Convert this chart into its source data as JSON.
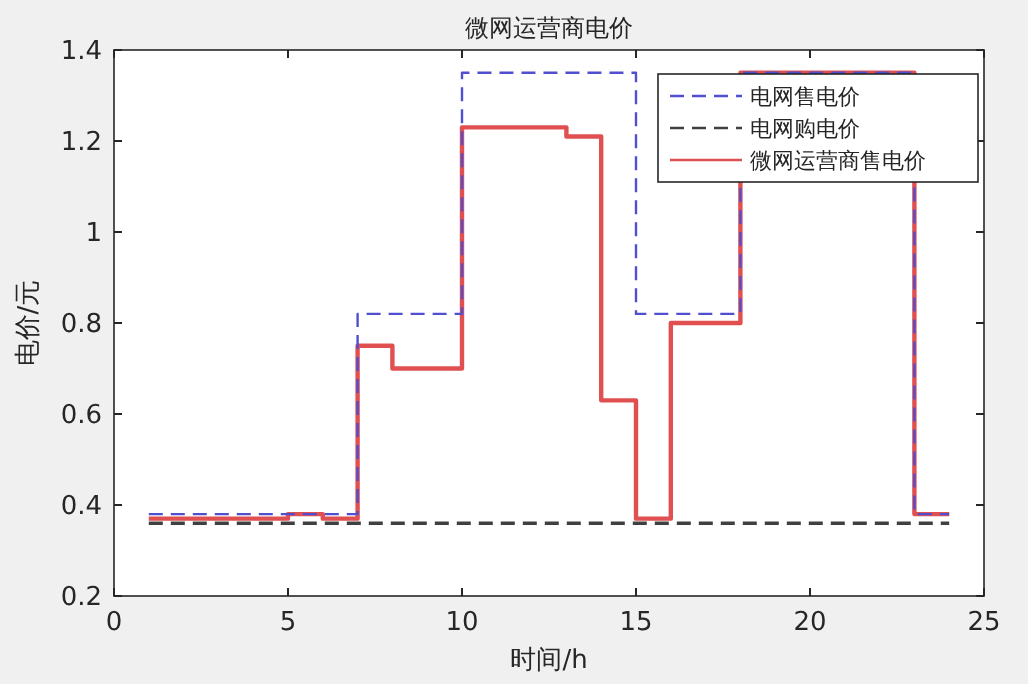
{
  "chart_data": {
    "type": "step",
    "title": "微网运营商电价",
    "xlabel": "时间/h",
    "ylabel": "电价/元",
    "x": [
      1,
      2,
      3,
      4,
      5,
      6,
      7,
      8,
      9,
      10,
      11,
      12,
      13,
      14,
      15,
      16,
      17,
      18,
      19,
      20,
      21,
      22,
      23,
      24
    ],
    "series": [
      {
        "name": "电网售电价",
        "color": "#4f4fcf",
        "line_style": "dashed",
        "values": [
          0.38,
          0.38,
          0.38,
          0.38,
          0.38,
          0.38,
          0.82,
          0.82,
          0.82,
          1.35,
          1.35,
          1.35,
          1.35,
          1.35,
          0.82,
          0.82,
          0.82,
          1.35,
          1.35,
          1.35,
          1.35,
          1.35,
          0.38,
          0.38
        ]
      },
      {
        "name": "电网购电价",
        "color": "#404040",
        "line_style": "dashed",
        "values": [
          0.36,
          0.36,
          0.36,
          0.36,
          0.36,
          0.36,
          0.36,
          0.36,
          0.36,
          0.36,
          0.36,
          0.36,
          0.36,
          0.36,
          0.36,
          0.36,
          0.36,
          0.36,
          0.36,
          0.36,
          0.36,
          0.36,
          0.36,
          0.36
        ]
      },
      {
        "name": "微网运营商售电价",
        "color": "#e05050",
        "line_style": "solid",
        "values": [
          0.37,
          0.37,
          0.37,
          0.37,
          0.38,
          0.37,
          0.75,
          0.7,
          0.7,
          1.23,
          1.23,
          1.23,
          1.21,
          0.63,
          0.37,
          0.8,
          0.8,
          1.35,
          1.35,
          1.35,
          1.35,
          1.35,
          0.38,
          0.38
        ]
      }
    ],
    "xlim": [
      0,
      25
    ],
    "xticks": [
      0,
      5,
      10,
      15,
      20,
      25
    ],
    "ylim": [
      0.2,
      1.4
    ],
    "yticks": [
      0.2,
      0.4,
      0.6,
      0.8,
      1,
      1.2,
      1.4
    ],
    "legend": "top right",
    "grid": false
  }
}
